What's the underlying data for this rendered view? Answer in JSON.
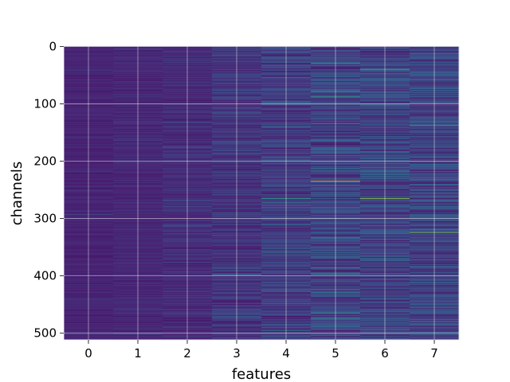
{
  "chart_data": {
    "type": "heatmap",
    "xlabel": "features",
    "ylabel": "channels",
    "x_categories": [
      "0",
      "1",
      "2",
      "3",
      "4",
      "5",
      "6",
      "7"
    ],
    "y_ticks": [
      0,
      100,
      200,
      300,
      400,
      500
    ],
    "ylim": [
      511.5,
      -0.5
    ],
    "rows": 512,
    "columns": 8,
    "grid": true,
    "colormap": "viridis",
    "column_base_intensity": [
      0.12,
      0.13,
      0.14,
      0.16,
      0.18,
      0.2,
      0.2,
      0.19
    ],
    "column_variability": [
      0.05,
      0.06,
      0.07,
      0.1,
      0.13,
      0.17,
      0.16,
      0.15
    ],
    "highlights": [
      {
        "feature": 5,
        "channel": 235,
        "intensity": 0.95
      },
      {
        "feature": 6,
        "channel": 265,
        "intensity": 0.85
      },
      {
        "feature": 7,
        "channel": 324,
        "intensity": 0.85
      },
      {
        "feature": 4,
        "channel": 265,
        "intensity": 0.6
      },
      {
        "feature": 5,
        "channel": 88,
        "intensity": 0.6
      },
      {
        "feature": 7,
        "channel": 138,
        "intensity": 0.55
      }
    ]
  },
  "colors": {
    "background": "#ffffff",
    "axis": "#000000",
    "grid": "#ffffff",
    "frame": "#ffffff"
  }
}
